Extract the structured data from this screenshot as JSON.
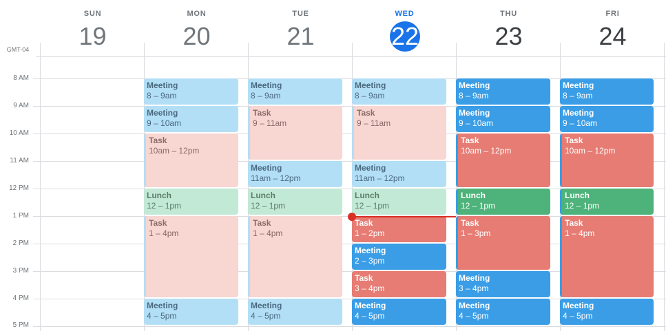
{
  "timezone": "GMT-04",
  "days": [
    {
      "dow": "SUN",
      "num": "19",
      "state": "past"
    },
    {
      "dow": "MON",
      "num": "20",
      "state": "past"
    },
    {
      "dow": "TUE",
      "num": "21",
      "state": "past"
    },
    {
      "dow": "WED",
      "num": "22",
      "state": "today"
    },
    {
      "dow": "THU",
      "num": "23",
      "state": "future"
    },
    {
      "dow": "FRI",
      "num": "24",
      "state": "future"
    }
  ],
  "hours": [
    "8 AM",
    "9 AM",
    "10 AM",
    "11 AM",
    "12 PM",
    "1 PM",
    "2 PM",
    "3 PM",
    "4 PM",
    "5 PM"
  ],
  "events": {
    "mon": [
      {
        "title": "Meeting",
        "time": "8 – 9am"
      },
      {
        "title": "Meeting",
        "time": "9 – 10am"
      },
      {
        "title": "Task",
        "time": "10am – 12pm"
      },
      {
        "title": "Lunch",
        "time": "12 – 1pm"
      },
      {
        "title": "Task",
        "time": "1 – 4pm"
      },
      {
        "title": "Meeting",
        "time": "4 – 5pm"
      }
    ],
    "tue": [
      {
        "title": "Meeting",
        "time": "8 – 9am"
      },
      {
        "title": "Task",
        "time": "9 – 11am"
      },
      {
        "title": "Meeting",
        "time": "11am – 12pm"
      },
      {
        "title": "Lunch",
        "time": "12 – 1pm"
      },
      {
        "title": "Task",
        "time": "1 – 4pm"
      },
      {
        "title": "Meeting",
        "time": "4 – 5pm"
      }
    ],
    "wed": [
      {
        "title": "Meeting",
        "time": "8 – 9am"
      },
      {
        "title": "Task",
        "time": "9 – 11am"
      },
      {
        "title": "Meeting",
        "time": "11am – 12pm"
      },
      {
        "title": "Lunch",
        "time": "12 – 1pm"
      },
      {
        "title": "Task",
        "time": "1 – 2pm"
      },
      {
        "title": "Meeting",
        "time": "2 – 3pm"
      },
      {
        "title": "Task",
        "time": "3 – 4pm"
      },
      {
        "title": "Meeting",
        "time": "4 – 5pm"
      }
    ],
    "thu": [
      {
        "title": "Meeting",
        "time": "8 – 9am"
      },
      {
        "title": "Meeting",
        "time": "9 – 10am"
      },
      {
        "title": "Task",
        "time": "10am – 12pm"
      },
      {
        "title": "Lunch",
        "time": "12 – 1pm"
      },
      {
        "title": "Task",
        "time": "1 – 3pm"
      },
      {
        "title": "Meeting",
        "time": "3 – 4pm"
      },
      {
        "title": "Meeting",
        "time": "4 – 5pm"
      }
    ],
    "fri": [
      {
        "title": "Meeting",
        "time": "8 – 9am"
      },
      {
        "title": "Meeting",
        "time": "9 – 10am"
      },
      {
        "title": "Task",
        "time": "10am – 12pm"
      },
      {
        "title": "Lunch",
        "time": "12 – 1pm"
      },
      {
        "title": "Task",
        "time": "1 – 4pm"
      },
      {
        "title": "Meeting",
        "time": "4 – 5pm"
      }
    ]
  },
  "colors": {
    "today_accent": "#1a73e8",
    "meeting": "#3a9de6",
    "task": "#e67c73",
    "lunch": "#4eb37a",
    "now_indicator": "#d93025"
  }
}
